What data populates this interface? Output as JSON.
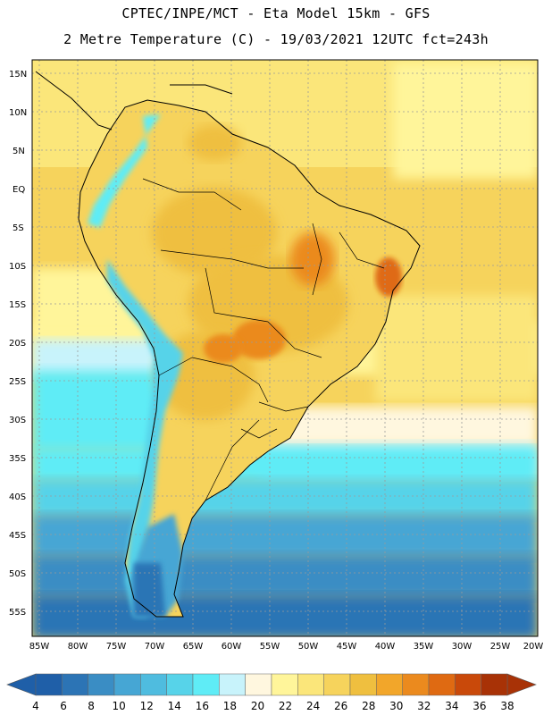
{
  "header": {
    "line1": "CPTEC/INPE/MCT -  Eta Model 15km - GFS",
    "line2": "2 Metre Temperature (C) - 19/03/2021 12UTC fct=243h"
  },
  "map": {
    "lat_labels": [
      "15N",
      "10N",
      "5N",
      "EQ",
      "5S",
      "10S",
      "15S",
      "20S",
      "25S",
      "30S",
      "35S",
      "40S",
      "45S",
      "50S",
      "55S"
    ],
    "lon_labels": [
      "85W",
      "80W",
      "75W",
      "70W",
      "65W",
      "60W",
      "55W",
      "50W",
      "45W",
      "40W",
      "35W",
      "30W",
      "25W",
      "20W"
    ]
  },
  "legend": {
    "labels": [
      "4",
      "6",
      "8",
      "10",
      "12",
      "14",
      "16",
      "18",
      "20",
      "22",
      "24",
      "26",
      "28",
      "30",
      "32",
      "34",
      "36",
      "38"
    ],
    "colors": [
      "#1f5fa8",
      "#2c74b5",
      "#3a8dc4",
      "#46a6d4",
      "#4fbcdf",
      "#57d3e9",
      "#5fecf6",
      "#c8f3fb",
      "#fff7df",
      "#fff59a",
      "#fbe67a",
      "#f6d35c",
      "#efbf3f",
      "#f2a62a",
      "#eb8a1e",
      "#df6a12",
      "#c9490a",
      "#a83206"
    ]
  }
}
